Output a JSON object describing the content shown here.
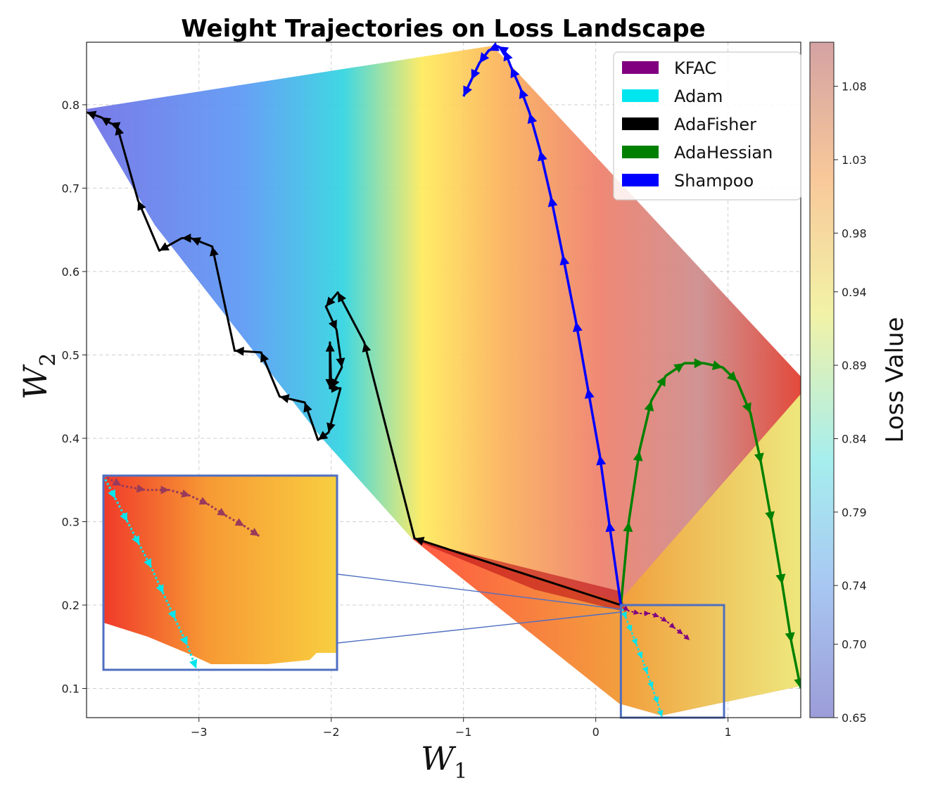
{
  "chart_data": {
    "type": "line",
    "title": "Weight Trajectories on Loss Landscape",
    "xlabel": "W",
    "xlabel_sub": "1",
    "ylabel": "W",
    "ylabel_sub": "2",
    "xlim": [
      -3.85,
      1.55
    ],
    "ylim": [
      0.065,
      0.875
    ],
    "x_ticks": [
      -3,
      -2,
      -1,
      0,
      1
    ],
    "x_tick_labels": [
      "−3",
      "−2",
      "−1",
      "0",
      "1"
    ],
    "y_ticks": [
      0.1,
      0.2,
      0.3,
      0.4,
      0.5,
      0.6,
      0.7,
      0.8
    ],
    "y_tick_labels": [
      "0.1",
      "0.2",
      "0.3",
      "0.4",
      "0.5",
      "0.6",
      "0.7",
      "0.8"
    ],
    "grid": true,
    "legend_position": "top-right",
    "colorbar": {
      "label": "Loss Value",
      "range": [
        0.65,
        1.11
      ],
      "ticks": [
        0.65,
        0.7,
        0.74,
        0.79,
        0.84,
        0.89,
        0.94,
        0.98,
        1.03,
        1.08
      ],
      "tick_labels": [
        "0.65",
        "0.70",
        "0.74",
        "0.79",
        "0.84",
        "0.89",
        "0.94",
        "0.98",
        "1.03",
        "1.08"
      ]
    },
    "series": [
      {
        "name": "KFAC",
        "color": "#800080",
        "x": [
          0.19,
          0.25,
          0.33,
          0.41,
          0.48,
          0.54,
          0.6,
          0.66,
          0.71
        ],
        "y": [
          0.2,
          0.193,
          0.19,
          0.19,
          0.186,
          0.18,
          0.172,
          0.165,
          0.158
        ]
      },
      {
        "name": "Adam",
        "color": "#00e5ee",
        "x": [
          0.19,
          0.23,
          0.27,
          0.31,
          0.35,
          0.39,
          0.43,
          0.47,
          0.5
        ],
        "y": [
          0.2,
          0.184,
          0.168,
          0.152,
          0.136,
          0.118,
          0.1,
          0.082,
          0.066
        ]
      },
      {
        "name": "AdaFisher",
        "color": "#000000",
        "x": [
          0.19,
          -1.37,
          -1.75,
          -1.95,
          -2.04,
          -1.96,
          -1.92,
          -2.0,
          -2.01,
          -2.01,
          -1.93,
          -2.02,
          -2.1,
          -2.2,
          -2.39,
          -2.53,
          -2.73,
          -2.9,
          -3.06,
          -3.13,
          -3.3,
          -3.46,
          -3.62,
          -3.67,
          -3.74,
          -3.85
        ],
        "y": [
          0.2,
          0.28,
          0.515,
          0.575,
          0.558,
          0.53,
          0.485,
          0.46,
          0.515,
          0.46,
          0.46,
          0.407,
          0.398,
          0.443,
          0.45,
          0.503,
          0.505,
          0.63,
          0.64,
          0.64,
          0.625,
          0.685,
          0.775,
          0.778,
          0.785,
          0.791
        ]
      },
      {
        "name": "AdaHessian",
        "color": "#008000",
        "x": [
          0.19,
          0.25,
          0.33,
          0.42,
          0.53,
          0.67,
          0.82,
          0.96,
          1.07,
          1.17,
          1.25,
          1.33,
          1.41,
          1.48,
          1.55
        ],
        "y": [
          0.2,
          0.3,
          0.385,
          0.445,
          0.475,
          0.49,
          0.49,
          0.485,
          0.468,
          0.43,
          0.37,
          0.3,
          0.225,
          0.155,
          0.1
        ]
      },
      {
        "name": "Shampoo",
        "color": "#0000ff",
        "x": [
          0.19,
          0.1,
          0.03,
          -0.06,
          -0.15,
          -0.25,
          -0.34,
          -0.42,
          -0.5,
          -0.57,
          -0.64,
          -0.69,
          -0.74,
          -0.81,
          -0.88,
          -0.94,
          -1.0
        ],
        "y": [
          0.2,
          0.3,
          0.38,
          0.46,
          0.54,
          0.62,
          0.69,
          0.745,
          0.79,
          0.82,
          0.845,
          0.865,
          0.87,
          0.865,
          0.85,
          0.83,
          0.81
        ]
      }
    ],
    "inset": {
      "xlim": [
        0.19,
        0.97
      ],
      "ylim": [
        0.065,
        0.2
      ]
    }
  }
}
